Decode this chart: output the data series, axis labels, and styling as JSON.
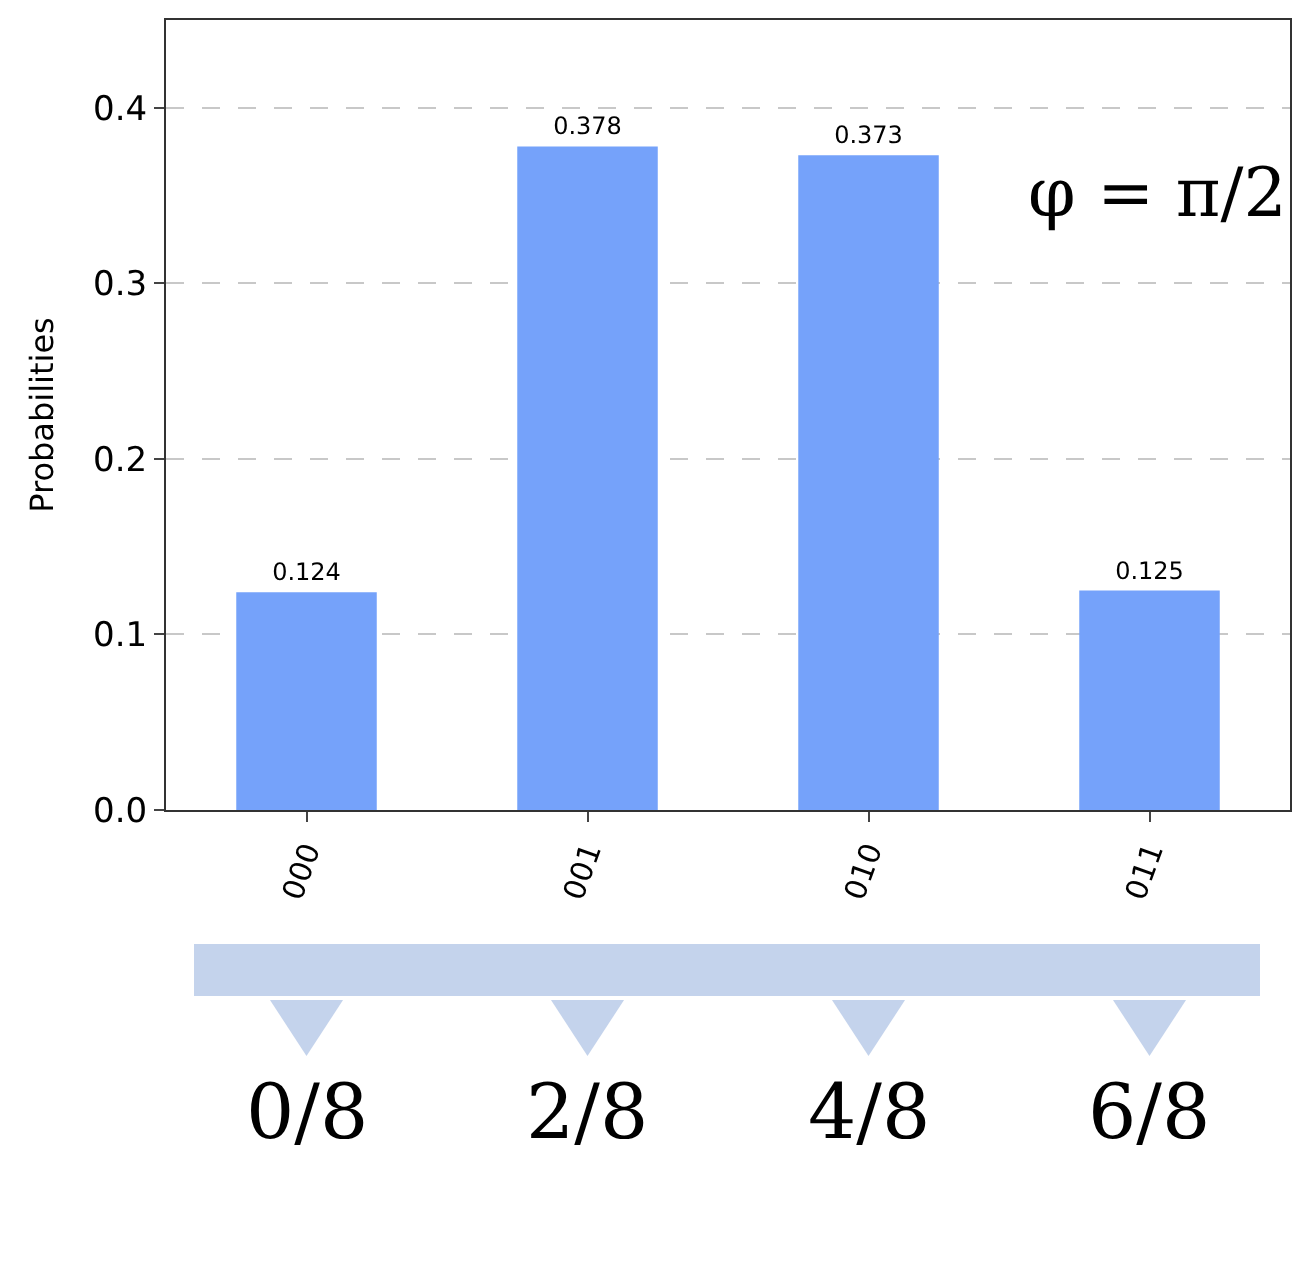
{
  "chart_data": {
    "type": "bar",
    "ylabel": "Probabilities",
    "categories": [
      "000",
      "001",
      "010",
      "011"
    ],
    "values": [
      0.124,
      0.378,
      0.373,
      0.125
    ],
    "color": "#75a2fa",
    "data_labels": true,
    "ylim": [
      0,
      0.45
    ],
    "yticks": [
      {
        "value": 0,
        "label": "0.0"
      },
      0.1,
      0.2,
      0.3,
      0.4
    ],
    "grid": "y",
    "annotations": [
      "φ = π/2",
      "0/8",
      "2/8",
      "4/8",
      "6/8"
    ]
  }
}
